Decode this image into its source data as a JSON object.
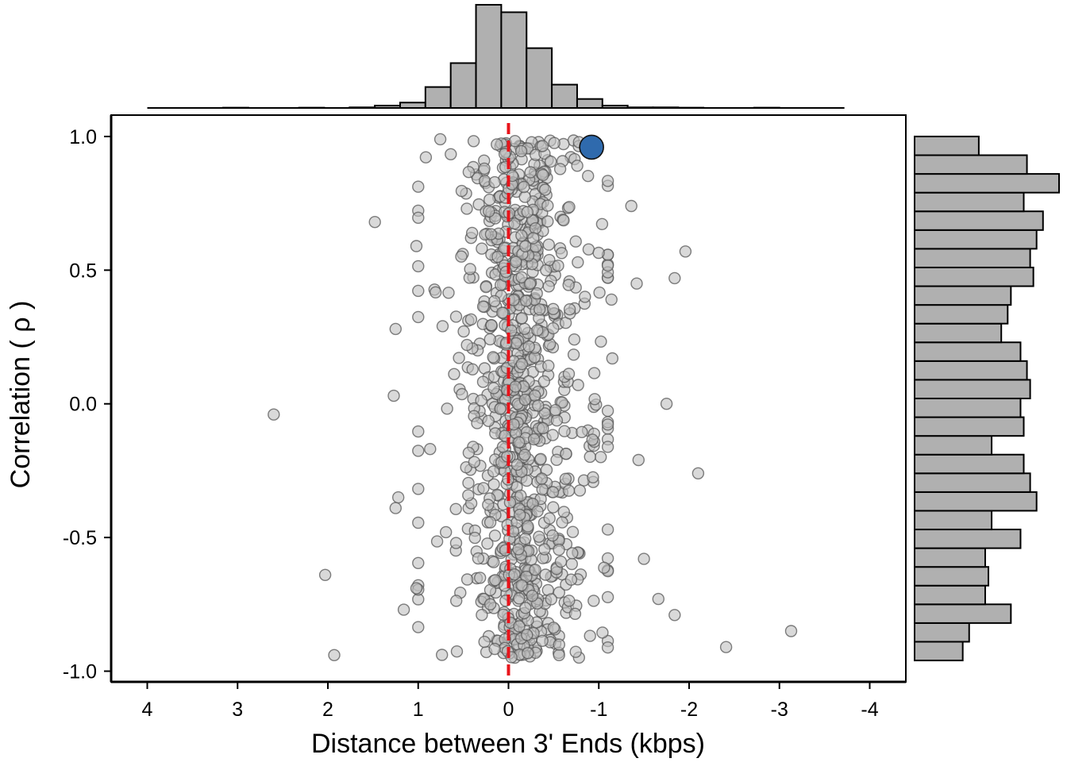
{
  "chart_data": {
    "type": "scatter",
    "title": "",
    "xlabel": "Distance between 3' Ends (kbps)",
    "ylabel": "Correlation ( ρ )",
    "xlim": [
      4.4,
      -4.4
    ],
    "ylim": [
      -1.04,
      1.08
    ],
    "x_reversed": true,
    "x_ticks": [
      4,
      3,
      2,
      1,
      0,
      -1,
      -2,
      -3,
      -4
    ],
    "x_tick_labels": [
      "4",
      "3",
      "2",
      "1",
      "0",
      "-1",
      "-2",
      "-3",
      "-4"
    ],
    "y_ticks": [
      1.0,
      0.5,
      0.0,
      -0.5,
      -1.0
    ],
    "y_tick_labels": [
      "1.0",
      "0.5",
      "0.0",
      "-0.5",
      "-1.0"
    ],
    "grid": false,
    "reference_line": {
      "x": 0,
      "style": "dashed",
      "color": "#e41a1c"
    },
    "colors": {
      "points": "#bfbfbf",
      "point_edge": "#555555",
      "highlight": "#2f6aad",
      "bars": "#b0b0b0"
    },
    "series": [
      {
        "role": "background",
        "n_points": 1000,
        "random_seed": 7,
        "x_distribution": {
          "type": "laplace",
          "center": -0.15,
          "scale": 0.3,
          "min": -3.2,
          "max": 2.6
        },
        "y_distribution": {
          "type": "uniform",
          "min": -0.95,
          "max": 0.99
        },
        "outliers": [
          {
            "x": 2.6,
            "y": -0.04
          },
          {
            "x": 2.03,
            "y": -0.64
          },
          {
            "x": 1.93,
            "y": -0.94
          },
          {
            "x": 1.48,
            "y": 0.68
          },
          {
            "x": -3.13,
            "y": -0.85
          },
          {
            "x": -2.41,
            "y": -0.91
          },
          {
            "x": -2.1,
            "y": -0.26
          },
          {
            "x": -1.96,
            "y": 0.57
          },
          {
            "x": -1.84,
            "y": 0.47
          },
          {
            "x": -1.84,
            "y": -0.79
          },
          {
            "x": -1.75,
            "y": 0.0
          },
          {
            "x": -1.66,
            "y": -0.73
          },
          {
            "x": -1.5,
            "y": -0.58
          },
          {
            "x": -1.44,
            "y": -0.21
          },
          {
            "x": -1.42,
            "y": 0.45
          },
          {
            "x": -1.36,
            "y": 0.74
          },
          {
            "x": 1.25,
            "y": 0.28
          },
          {
            "x": 1.27,
            "y": 0.03
          },
          {
            "x": 1.22,
            "y": -0.35
          },
          {
            "x": 1.25,
            "y": -0.39
          },
          {
            "x": 1.16,
            "y": -0.77
          },
          {
            "x": 1.02,
            "y": 0.59
          },
          {
            "x": 1.02,
            "y": -0.69
          },
          {
            "x": -1.15,
            "y": 0.17
          },
          {
            "x": -1.14,
            "y": 0.39
          }
        ]
      },
      {
        "role": "highlight",
        "points": [
          {
            "x": -0.92,
            "y": 0.96
          }
        ]
      }
    ],
    "marginal_top": {
      "bin_edges": [
        4.0,
        3.72,
        3.44,
        3.16,
        2.88,
        2.6,
        2.32,
        2.04,
        1.76,
        1.48,
        1.2,
        0.92,
        0.64,
        0.36,
        0.08,
        -0.2,
        -0.48,
        -0.76,
        -1.04,
        -1.32,
        -1.6,
        -1.88,
        -2.16,
        -2.44,
        -2.72,
        -3.0,
        -3.28,
        -3.56,
        -3.72
      ],
      "counts": [
        0,
        0,
        0,
        1,
        0,
        0,
        1,
        0,
        2,
        8,
        18,
        70,
        150,
        345,
        320,
        200,
        78,
        30,
        8,
        2,
        2,
        1,
        0,
        0,
        1,
        0,
        0,
        0
      ]
    },
    "marginal_right": {
      "bin_edges": [
        -0.96,
        -0.89,
        -0.82,
        -0.75,
        -0.68,
        -0.61,
        -0.54,
        -0.47,
        -0.4,
        -0.33,
        -0.26,
        -0.19,
        -0.12,
        -0.05,
        0.02,
        0.09,
        0.16,
        0.23,
        0.3,
        0.37,
        0.44,
        0.51,
        0.58,
        0.65,
        0.72,
        0.79,
        0.86,
        0.93,
        1.0
      ],
      "counts": [
        15,
        17,
        30,
        22,
        23,
        22,
        33,
        24,
        38,
        36,
        34,
        24,
        34,
        33,
        36,
        35,
        33,
        27,
        29,
        30,
        37,
        36,
        38,
        40,
        34,
        45,
        35,
        20
      ]
    }
  }
}
